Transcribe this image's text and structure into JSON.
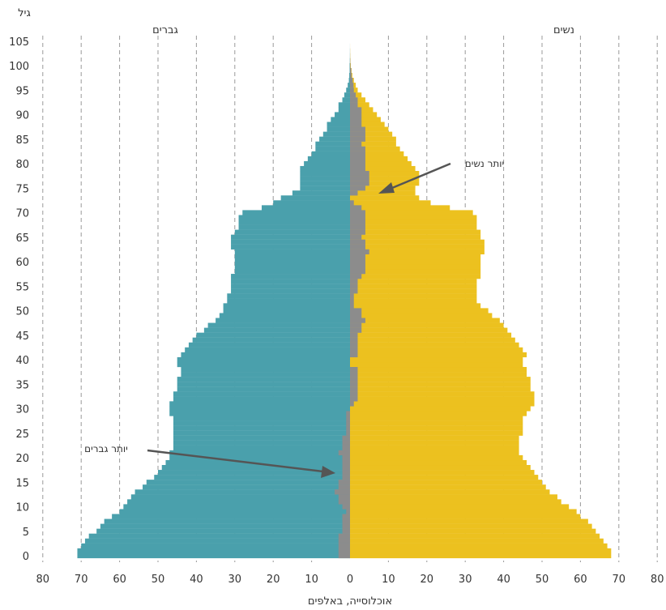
{
  "chart_data": {
    "type": "bar",
    "orientation": "horizontal-pyramid",
    "ylabel": "גיל",
    "xlabel": "אוכלוסייה, באלפים",
    "left_label": "גברים",
    "right_label": "נשים",
    "xlim": [
      -80,
      80
    ],
    "ylim": [
      0,
      105
    ],
    "x_ticks": [
      80,
      70,
      60,
      50,
      40,
      30,
      20,
      10,
      0,
      10,
      20,
      30,
      40,
      50,
      60,
      70,
      80
    ],
    "y_ticks": [
      0,
      5,
      10,
      15,
      20,
      25,
      30,
      35,
      40,
      45,
      50,
      55,
      60,
      65,
      70,
      75,
      80,
      85,
      90,
      95,
      100,
      105
    ],
    "grid": "vertical-dashed",
    "colors": {
      "men": "#4aa0ac",
      "women": "#ecc11f",
      "excess": "#8c8c8c",
      "grid": "#9a9a9a",
      "arrow": "#555555"
    },
    "ages": [
      0,
      1,
      2,
      3,
      4,
      5,
      6,
      7,
      8,
      9,
      10,
      11,
      12,
      13,
      14,
      15,
      16,
      17,
      18,
      19,
      20,
      21,
      22,
      23,
      24,
      25,
      26,
      27,
      28,
      29,
      30,
      31,
      32,
      33,
      34,
      35,
      36,
      37,
      38,
      39,
      40,
      41,
      42,
      43,
      44,
      45,
      46,
      47,
      48,
      49,
      50,
      51,
      52,
      53,
      54,
      55,
      56,
      57,
      58,
      59,
      60,
      61,
      62,
      63,
      64,
      65,
      66,
      67,
      68,
      69,
      70,
      71,
      72,
      73,
      74,
      75,
      76,
      77,
      78,
      79,
      80,
      81,
      82,
      83,
      84,
      85,
      86,
      87,
      88,
      89,
      90,
      91,
      92,
      93,
      94,
      95,
      96,
      97,
      98,
      99,
      100,
      101,
      102,
      103,
      104
    ],
    "series": [
      {
        "name": "גברים",
        "values": [
          71,
          71,
          70,
          69,
          68,
          66,
          65,
          64,
          62,
          60,
          59,
          58,
          57,
          56,
          54,
          53,
          51,
          50,
          49,
          48,
          47,
          47,
          46,
          46,
          46,
          46,
          46,
          46,
          46,
          47,
          47,
          47,
          46,
          46,
          45,
          45,
          45,
          44,
          44,
          45,
          45,
          44,
          43,
          42,
          41,
          40,
          38,
          37,
          35,
          34,
          33,
          33,
          32,
          32,
          31,
          31,
          31,
          31,
          30,
          30,
          30,
          30,
          30,
          31,
          31,
          31,
          30,
          29,
          29,
          29,
          28,
          23,
          20,
          18,
          15,
          13,
          13,
          13,
          13,
          13,
          12,
          11,
          10,
          9,
          9,
          8,
          7,
          6,
          6,
          5,
          4,
          3,
          3,
          2,
          1.5,
          1,
          0.6,
          0.3,
          0.2,
          0.1,
          0.1,
          0.05,
          0.03,
          0.02,
          0.01
        ]
      },
      {
        "name": "נשים",
        "values": [
          68,
          68,
          67,
          66,
          65,
          64,
          63,
          62,
          60,
          59,
          57,
          55,
          54,
          52,
          51,
          50,
          49,
          48,
          47,
          46,
          45,
          44,
          44,
          44,
          44,
          45,
          45,
          45,
          45,
          46,
          47,
          48,
          48,
          48,
          47,
          47,
          47,
          46,
          46,
          45,
          45,
          46,
          45,
          44,
          43,
          42,
          41,
          40,
          39,
          37,
          36,
          34,
          33,
          33,
          33,
          33,
          33,
          34,
          34,
          34,
          34,
          34,
          35,
          35,
          35,
          34,
          34,
          33,
          33,
          33,
          32,
          26,
          21,
          18,
          17,
          17,
          18,
          18,
          18,
          17,
          16,
          15,
          14,
          13,
          12,
          12,
          11,
          10,
          9,
          8,
          7,
          6,
          5,
          4,
          3,
          2,
          1.5,
          1,
          0.6,
          0.4,
          0.2,
          0.1,
          0.05,
          0.03,
          0.01
        ]
      }
    ],
    "annotations": [
      {
        "text": "יותר נשים",
        "age": 75,
        "value": 7,
        "side": "women"
      },
      {
        "text": "יותר גברים",
        "age": 17,
        "value": -3,
        "side": "men"
      }
    ]
  }
}
